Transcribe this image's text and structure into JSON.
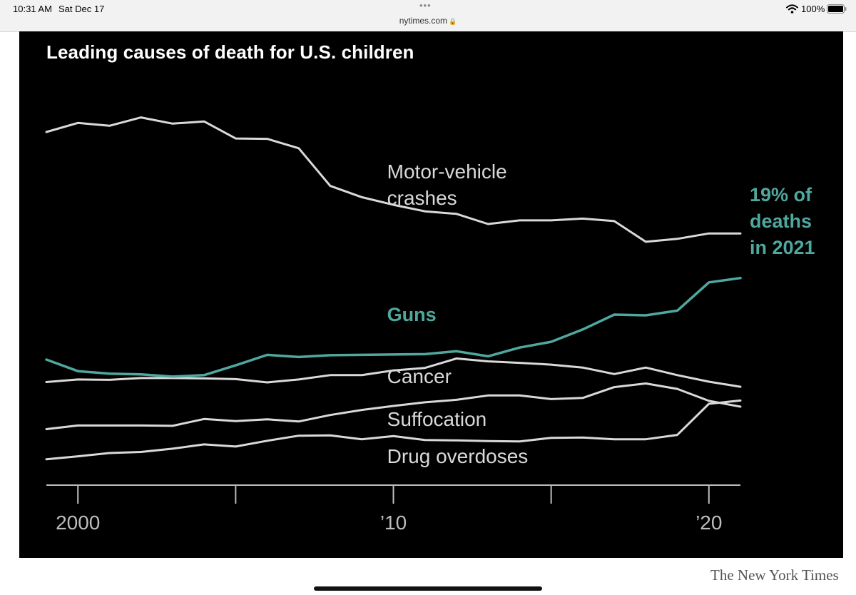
{
  "status_bar": {
    "time": "10:31 AM",
    "date": "Sat Dec 17",
    "url": "nytimes.com",
    "battery": "100%",
    "dots": "•••"
  },
  "footer": {
    "credit": "The New York Times"
  },
  "chart_data": {
    "type": "line",
    "title": "Leading causes of death for U.S. children",
    "xlabel": "",
    "ylabel": "",
    "xlim": [
      1999,
      2021
    ],
    "ylim": [
      0,
      100
    ],
    "grid": false,
    "axis_ticks": [
      2000,
      2005,
      2010,
      2015,
      2020
    ],
    "tick_labels": [
      {
        "year": 2000,
        "label": "2000"
      },
      {
        "year": 2010,
        "label": "’10"
      },
      {
        "year": 2020,
        "label": "’20"
      }
    ],
    "x": [
      1999,
      2000,
      2001,
      2002,
      2003,
      2004,
      2005,
      2006,
      2007,
      2008,
      2009,
      2010,
      2011,
      2012,
      2013,
      2014,
      2015,
      2016,
      2017,
      2018,
      2019,
      2020,
      2021
    ],
    "series": [
      {
        "name": "Motor-vehicle crashes",
        "label_lines": [
          "Motor-vehicle",
          "crashes"
        ],
        "color": "#d9d9d9",
        "highlight": false,
        "values": [
          94.3,
          96.8,
          96.0,
          98.3,
          96.6,
          97.2,
          92.5,
          92.4,
          89.8,
          79.4,
          76.3,
          74.2,
          72.4,
          71.7,
          68.9,
          69.9,
          69.9,
          70.4,
          69.7,
          64.0,
          64.8,
          66.3,
          66.3
        ]
      },
      {
        "name": "Guns",
        "label_lines": [
          "Guns"
        ],
        "color": "#4fa89e",
        "highlight": true,
        "annotation": [
          "19% of",
          "deaths",
          "in 2021"
        ],
        "values": [
          31.5,
          28.3,
          27.6,
          27.4,
          26.8,
          27.2,
          29.9,
          32.8,
          32.2,
          32.7,
          32.8,
          32.9,
          33.0,
          33.8,
          32.4,
          34.8,
          36.4,
          39.8,
          43.9,
          43.7,
          45.0,
          52.8,
          54.0
        ]
      },
      {
        "name": "Cancer",
        "label_lines": [
          "Cancer"
        ],
        "color": "#d9d9d9",
        "highlight": false,
        "values": [
          25.3,
          26.0,
          25.9,
          26.4,
          26.4,
          26.3,
          26.1,
          25.2,
          26.0,
          27.2,
          27.2,
          28.5,
          29.2,
          31.8,
          31.0,
          30.6,
          30.1,
          29.3,
          27.5,
          29.3,
          27.2,
          25.4,
          24.0
        ]
      },
      {
        "name": "Suffocation",
        "label_lines": [
          "Suffocation"
        ],
        "color": "#d9d9d9",
        "highlight": false,
        "values": [
          12.3,
          13.3,
          13.3,
          13.3,
          13.2,
          15.1,
          14.5,
          15.0,
          14.4,
          16.2,
          17.6,
          18.7,
          19.7,
          20.4,
          21.6,
          21.6,
          20.6,
          20.9,
          23.9,
          24.9,
          23.4,
          20.1,
          18.5
        ]
      },
      {
        "name": "Drug overdoses",
        "label_lines": [
          "Drug overdoses"
        ],
        "color": "#d9d9d9",
        "highlight": false,
        "values": [
          4.0,
          4.8,
          5.7,
          6.0,
          6.9,
          8.1,
          7.5,
          9.1,
          10.5,
          10.6,
          9.5,
          10.4,
          9.3,
          9.2,
          9.0,
          8.9,
          9.9,
          10.0,
          9.5,
          9.5,
          10.7,
          19.3,
          20.2
        ]
      }
    ]
  }
}
